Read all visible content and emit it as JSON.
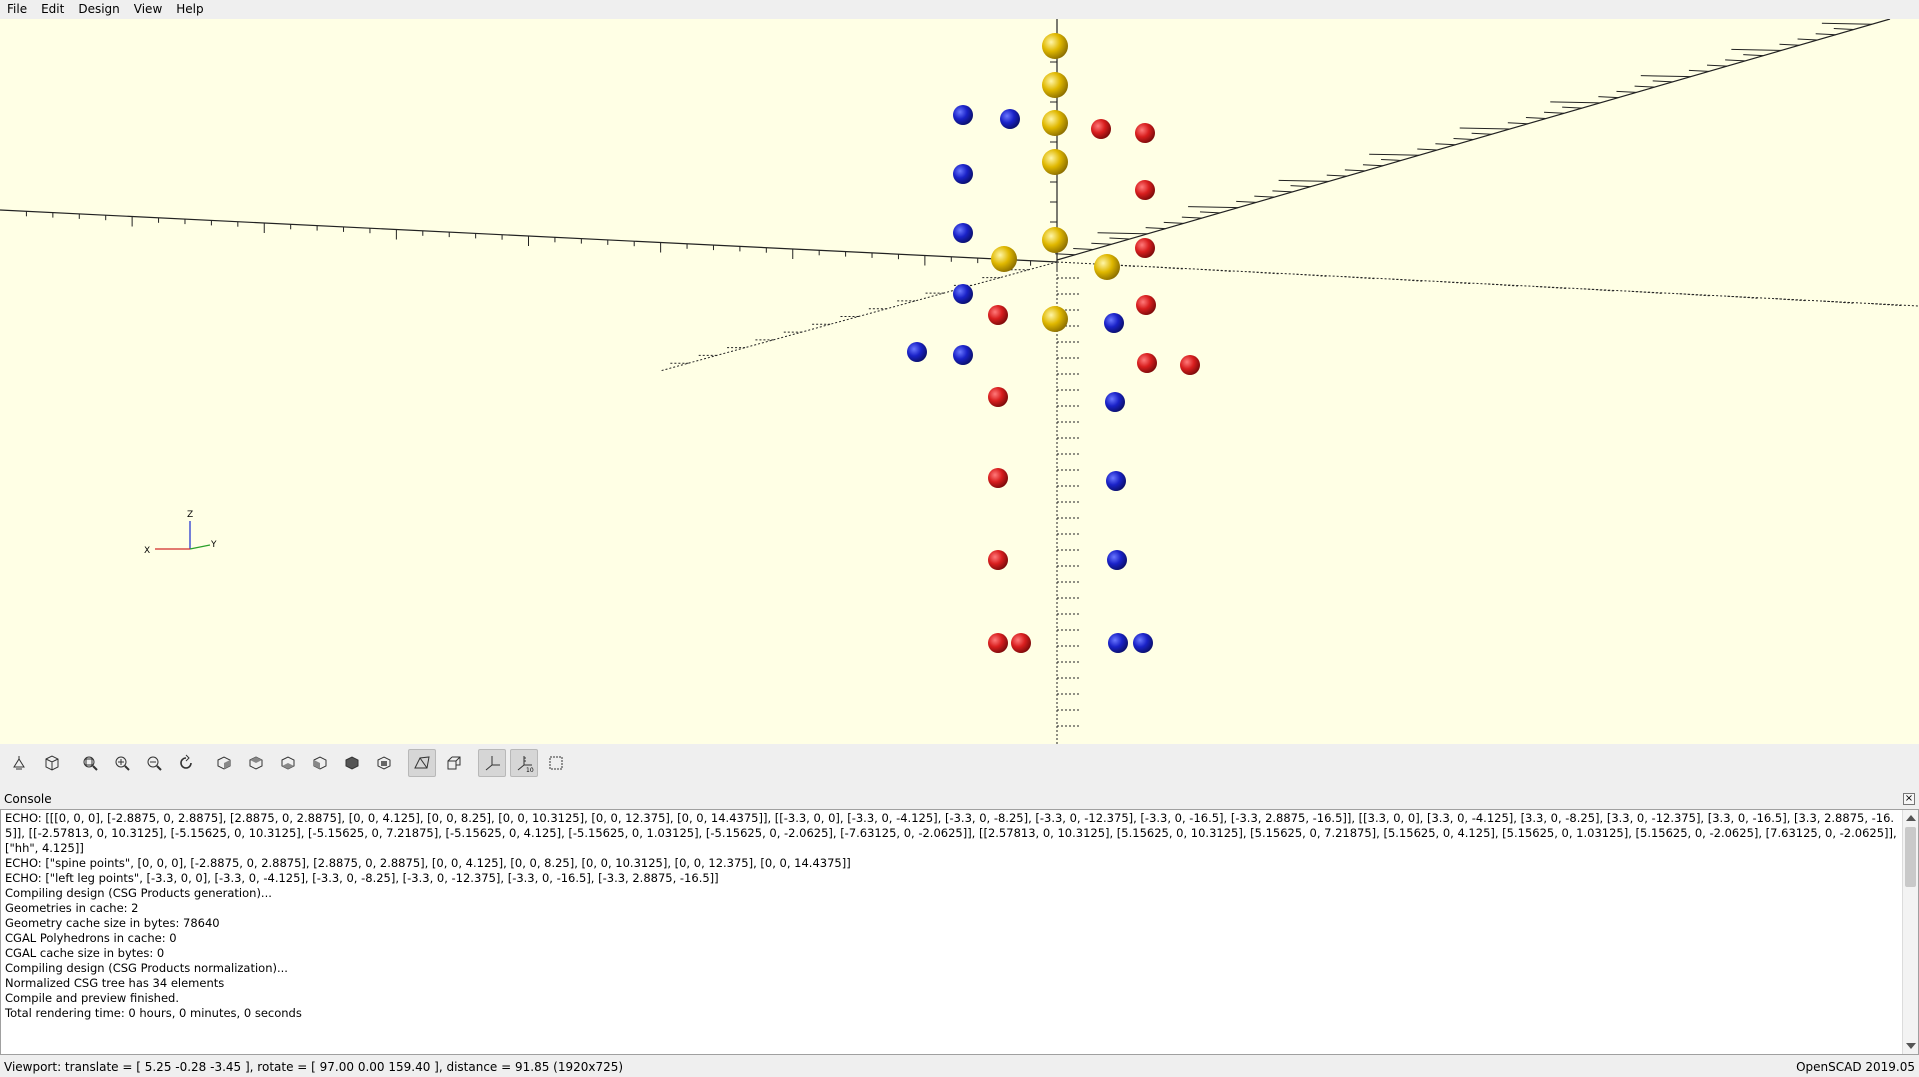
{
  "menu": {
    "items": [
      "File",
      "Edit",
      "Design",
      "View",
      "Help"
    ]
  },
  "viewport": {
    "background": "#ffffe5",
    "axis_labels": {
      "x": "X",
      "y": "Y",
      "z": "Z"
    },
    "sphere_colors": {
      "spine": "#e8c20a",
      "left": "#1a22c8",
      "right": "#d81e1e"
    }
  },
  "toolbar": {
    "buttons": [
      {
        "name": "render-button",
        "icon": "render-icon"
      },
      {
        "name": "preview-button",
        "icon": "preview-cube-icon"
      },
      {
        "name": "view-all-button",
        "icon": "zoom-all-icon"
      },
      {
        "name": "zoom-in-button",
        "icon": "zoom-in-icon"
      },
      {
        "name": "zoom-out-button",
        "icon": "zoom-out-icon"
      },
      {
        "name": "reset-view-button",
        "icon": "reset-view-icon"
      },
      {
        "name": "view-right-button",
        "icon": "view-right-icon"
      },
      {
        "name": "view-top-button",
        "icon": "view-top-icon"
      },
      {
        "name": "view-bottom-button",
        "icon": "view-bottom-icon"
      },
      {
        "name": "view-left-button",
        "icon": "view-left-icon"
      },
      {
        "name": "view-front-button",
        "icon": "view-front-icon"
      },
      {
        "name": "view-back-button",
        "icon": "view-back-icon"
      },
      {
        "name": "perspective-button",
        "icon": "perspective-icon",
        "active": true
      },
      {
        "name": "orthogonal-button",
        "icon": "orthogonal-icon"
      },
      {
        "name": "show-axes-button",
        "icon": "axes-icon",
        "active": true
      },
      {
        "name": "show-scale-button",
        "icon": "scale-markers-icon",
        "active": true
      },
      {
        "name": "show-edges-button",
        "icon": "edges-icon"
      }
    ]
  },
  "console": {
    "title": "Console",
    "lines": [
      "ECHO: [[[0, 0, 0], [-2.8875, 0, 2.8875], [2.8875, 0, 2.8875], [0, 0, 4.125], [0, 0, 8.25], [0, 0, 10.3125], [0, 0, 12.375], [0, 0, 14.4375]], [[-3.3, 0, 0], [-3.3, 0, -4.125], [-3.3, 0, -8.25], [-3.3, 0, -12.375], [-3.3, 0, -16.5], [-3.3, 2.8875, -16.5]], [[3.3, 0, 0], [3.3, 0, -4.125], [3.3, 0, -8.25], [3.3, 0, -12.375], [3.3, 0, -16.5], [3.3, 2.8875, -16.5]], [[-2.57813, 0, 10.3125], [-5.15625, 0, 10.3125], [-5.15625, 0, 7.21875], [-5.15625, 0, 4.125], [-5.15625, 0, 1.03125], [-5.15625, 0, -2.0625], [-7.63125, 0, -2.0625]], [[2.57813, 0, 10.3125], [5.15625, 0, 10.3125], [5.15625, 0, 7.21875], [5.15625, 0, 4.125], [5.15625, 0, 1.03125], [5.15625, 0, -2.0625], [7.63125, 0, -2.0625]], [\"hh\", 4.125]]",
      "ECHO: [\"spine points\", [0, 0, 0], [-2.8875, 0, 2.8875], [2.8875, 0, 2.8875], [0, 0, 4.125], [0, 0, 8.25], [0, 0, 10.3125], [0, 0, 12.375], [0, 0, 14.4375]]",
      "ECHO: [\"left leg points\", [-3.3, 0, 0], [-3.3, 0, -4.125], [-3.3, 0, -8.25], [-3.3, 0, -12.375], [-3.3, 0, -16.5], [-3.3, 2.8875, -16.5]]",
      "Compiling design (CSG Products generation)...",
      "Geometries in cache: 2",
      "Geometry cache size in bytes: 78640",
      "CGAL Polyhedrons in cache: 0",
      "CGAL cache size in bytes: 0",
      "Compiling design (CSG Products normalization)...",
      "Normalized CSG tree has 34 elements",
      "Compile and preview finished.",
      "Total rendering time: 0 hours, 0 minutes, 0 seconds"
    ]
  },
  "status": {
    "viewport_info": "Viewport: translate = [ 5.25 -0.28 -3.45 ], rotate = [ 97.00 0.00 159.40 ], distance = 91.85 (1920x725)",
    "version": "OpenSCAD 2019.05"
  }
}
